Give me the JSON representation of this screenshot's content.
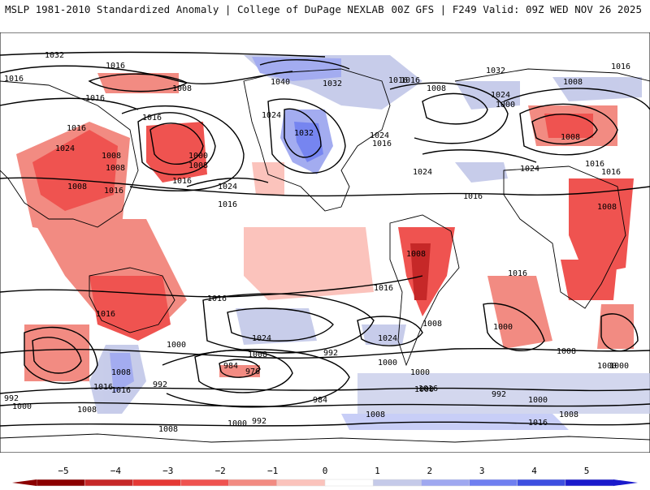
{
  "header": {
    "title_left": "MSLP 1981-2010 Standardized Anomaly | College of DuPage NEXLAB",
    "title_right": "00Z GFS | F249 Valid: 09Z WED NOV 26 2025"
  },
  "isobar_labels": [
    "1032",
    "1016",
    "1008",
    "1016",
    "1016",
    "1024",
    "1008",
    "1016",
    "1008",
    "1016",
    "1008",
    "1016",
    "1000",
    "1008",
    "1016",
    "1024",
    "1016",
    "1040",
    "1032",
    "1024",
    "1032",
    "1024",
    "1016",
    "1016",
    "1024",
    "1016",
    "1016",
    "1008",
    "1032",
    "1024",
    "1000",
    "1008",
    "1016",
    "1024",
    "1016",
    "1008",
    "1016",
    "1016",
    "1008",
    "1008",
    "1016",
    "1016",
    "1024",
    "1016",
    "1000",
    "1008",
    "992",
    "1000",
    "1024",
    "1000",
    "1008",
    "984",
    "976",
    "984",
    "992",
    "1000",
    "1000",
    "1016",
    "1008",
    "992",
    "1000",
    "1008",
    "1008",
    "1000",
    "1016",
    "1008",
    "1000",
    "992",
    "1000",
    "1008",
    "1016",
    "992",
    "1000",
    "1008",
    "1016"
  ],
  "colorbar": {
    "ticks": [
      "−5",
      "−4",
      "−3",
      "−2",
      "−1",
      "0",
      "1",
      "2",
      "3",
      "4",
      "5"
    ],
    "colors": [
      "#8b0000",
      "#c62828",
      "#e53935",
      "#ef5350",
      "#f28b82",
      "#fbc3bc",
      "#ffffff",
      "#c5cae9",
      "#9fa8f0",
      "#6f7ff0",
      "#3d4fe0",
      "#1a1acc"
    ]
  }
}
